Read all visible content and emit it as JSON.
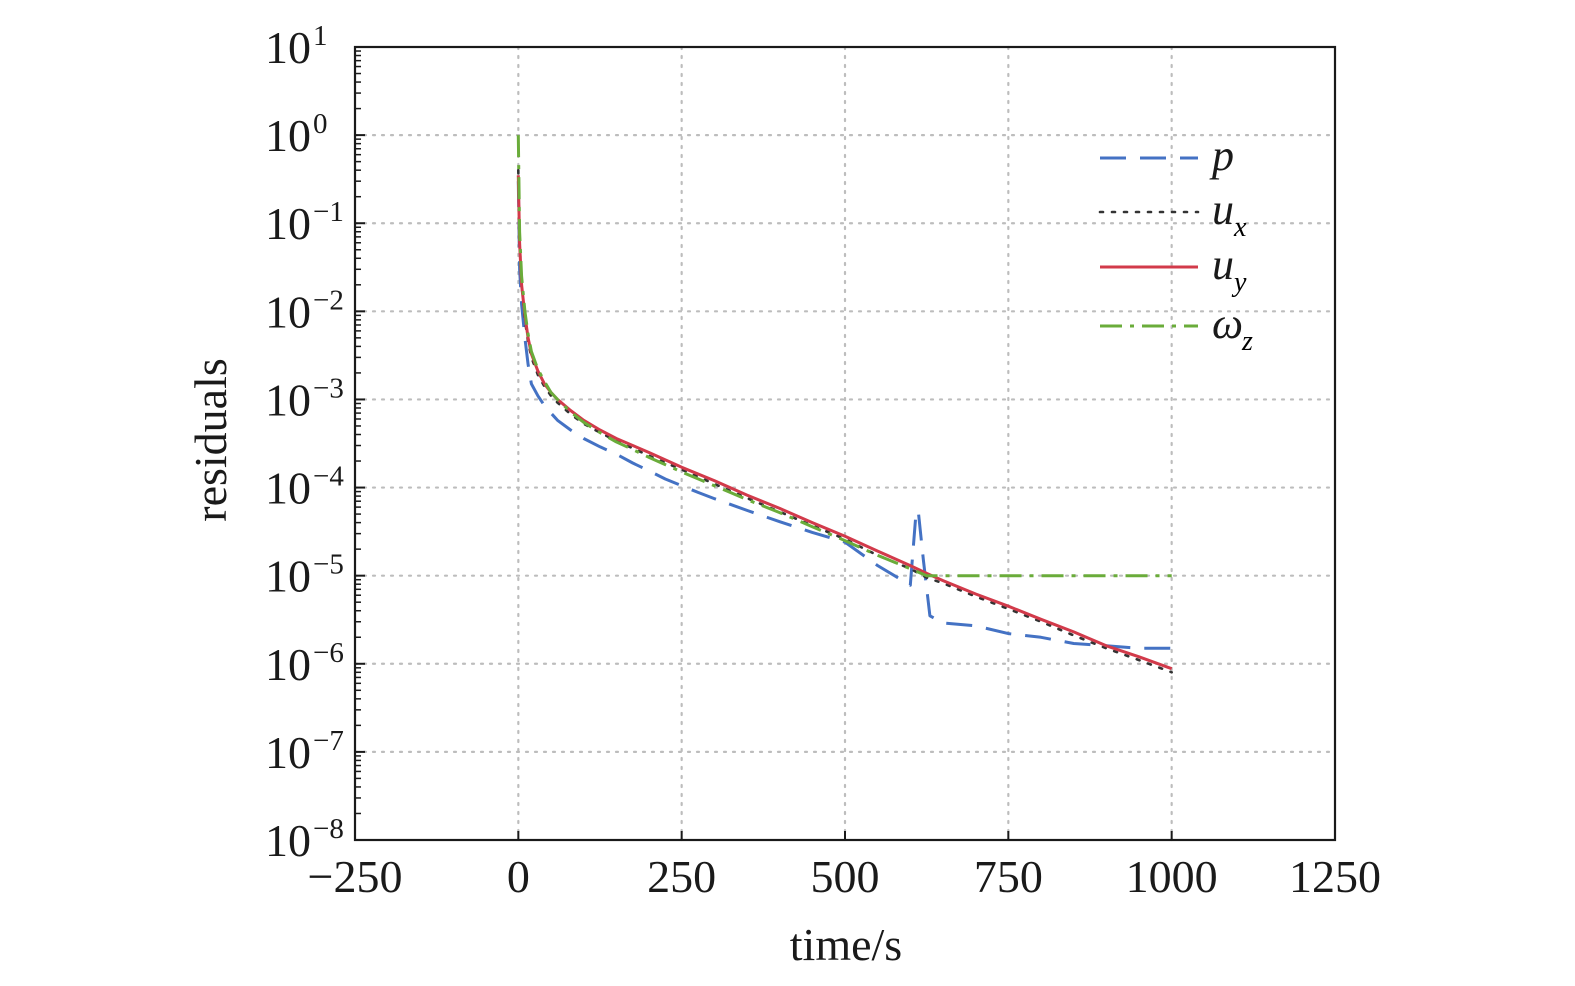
{
  "chart_data": {
    "type": "line",
    "title": "",
    "xlabel": "time/s",
    "ylabel": "residuals",
    "xscale": "linear",
    "yscale": "log",
    "xlim": [
      -250,
      1250
    ],
    "ylim": [
      1e-08,
      10
    ],
    "grid": true,
    "legend_position": "top-right",
    "x_ticks": [
      {
        "value": -250,
        "label": "−250"
      },
      {
        "value": 0,
        "label": "0"
      },
      {
        "value": 250,
        "label": "250"
      },
      {
        "value": 500,
        "label": "500"
      },
      {
        "value": 750,
        "label": "750"
      },
      {
        "value": 1000,
        "label": "1000"
      },
      {
        "value": 1250,
        "label": "1250"
      }
    ],
    "y_ticks": [
      {
        "value": 1e-08,
        "base": "10",
        "exponent": "−8"
      },
      {
        "value": 1e-07,
        "base": "10",
        "exponent": "−7"
      },
      {
        "value": 1e-06,
        "base": "10",
        "exponent": "−6"
      },
      {
        "value": 1e-05,
        "base": "10",
        "exponent": "−5"
      },
      {
        "value": 0.0001,
        "base": "10",
        "exponent": "−4"
      },
      {
        "value": 0.001,
        "base": "10",
        "exponent": "−3"
      },
      {
        "value": 0.01,
        "base": "10",
        "exponent": "−2"
      },
      {
        "value": 0.1,
        "base": "10",
        "exponent": "−1"
      },
      {
        "value": 1,
        "base": "10",
        "exponent": "0"
      },
      {
        "value": 10,
        "base": "10",
        "exponent": "1"
      }
    ],
    "series": [
      {
        "name": "p",
        "label": "p",
        "sub": "",
        "color": "#4472c4",
        "style": "dashed",
        "x": [
          0,
          2,
          5,
          10,
          15,
          20,
          30,
          40,
          50,
          60,
          80,
          100,
          125,
          150,
          175,
          200,
          225,
          250,
          275,
          300,
          350,
          400,
          450,
          500,
          550,
          600,
          608,
          612,
          620,
          630,
          650,
          700,
          750,
          800,
          850,
          900,
          950,
          1000
        ],
        "y": [
          0.3,
          0.03,
          0.012,
          0.005,
          0.0025,
          0.0015,
          0.0011,
          0.00085,
          0.0007,
          0.00058,
          0.00045,
          0.00036,
          0.00029,
          0.00024,
          0.00019,
          0.000155,
          0.000125,
          0.000105,
          8.8e-05,
          7.5e-05,
          5.5e-05,
          4.1e-05,
          3.1e-05,
          2.4e-05,
          1.3e-05,
          7.8e-06,
          4.5e-05,
          5.5e-05,
          1.5e-05,
          3.5e-06,
          2.9e-06,
          2.7e-06,
          2.2e-06,
          2e-06,
          1.7e-06,
          1.6e-06,
          1.5e-06,
          1.5e-06
        ]
      },
      {
        "name": "u_x",
        "label": "u",
        "sub": "x",
        "color": "#333333",
        "style": "dotted",
        "x": [
          0,
          2,
          5,
          10,
          15,
          20,
          30,
          40,
          50,
          60,
          80,
          100,
          125,
          150,
          175,
          200,
          250,
          300,
          350,
          400,
          450,
          500,
          550,
          600,
          625,
          650,
          700,
          750,
          800,
          850,
          900,
          950,
          1000
        ],
        "y": [
          0.4,
          0.06,
          0.02,
          0.008,
          0.0045,
          0.003,
          0.0019,
          0.0014,
          0.0011,
          0.00092,
          0.00068,
          0.00053,
          0.00042,
          0.00034,
          0.00028,
          0.00023,
          0.00016,
          0.00011,
          7.6e-05,
          5.3e-05,
          3.7e-05,
          2.6e-05,
          1.7e-05,
          1.2e-05,
          9.5e-06,
          8.2e-06,
          5.8e-06,
          4.2e-06,
          3e-06,
          2.1e-06,
          1.5e-06,
          1.1e-06,
          8e-07
        ]
      },
      {
        "name": "u_y",
        "label": "u",
        "sub": "y",
        "color": "#d23a4a",
        "style": "solid",
        "x": [
          0,
          2,
          5,
          10,
          15,
          20,
          30,
          40,
          50,
          60,
          80,
          100,
          125,
          150,
          175,
          200,
          250,
          300,
          350,
          400,
          450,
          500,
          550,
          600,
          625,
          650,
          700,
          750,
          800,
          850,
          900,
          950,
          1000
        ],
        "y": [
          0.35,
          0.06,
          0.02,
          0.009,
          0.005,
          0.0033,
          0.0021,
          0.0015,
          0.0012,
          0.001,
          0.00075,
          0.00058,
          0.00045,
          0.00036,
          0.0003,
          0.00025,
          0.00017,
          0.00012,
          8.2e-05,
          5.8e-05,
          4e-05,
          2.8e-05,
          1.9e-05,
          1.3e-05,
          1.06e-05,
          8.8e-06,
          6.2e-06,
          4.5e-06,
          3.2e-06,
          2.3e-06,
          1.6e-06,
          1.2e-06,
          8.8e-07
        ]
      },
      {
        "name": "omega_z",
        "label": "ω",
        "sub": "z",
        "color": "#6aac3a",
        "style": "dashdot",
        "x": [
          0,
          2,
          5,
          10,
          15,
          20,
          30,
          40,
          50,
          60,
          80,
          100,
          125,
          150,
          175,
          200,
          250,
          300,
          350,
          400,
          450,
          500,
          550,
          600,
          625,
          650,
          700,
          750,
          800,
          850,
          900,
          950,
          1000
        ],
        "y": [
          1.0,
          0.08,
          0.025,
          0.01,
          0.0055,
          0.0035,
          0.0022,
          0.0016,
          0.0012,
          0.001,
          0.00072,
          0.00055,
          0.00042,
          0.00033,
          0.00027,
          0.00022,
          0.00015,
          0.000105,
          7.3e-05,
          5.2e-05,
          3.6e-05,
          2.5e-05,
          1.7e-05,
          1.2e-05,
          1e-05,
          1e-05,
          1e-05,
          1e-05,
          1e-05,
          1e-05,
          1e-05,
          1e-05,
          1e-05
        ]
      }
    ]
  }
}
